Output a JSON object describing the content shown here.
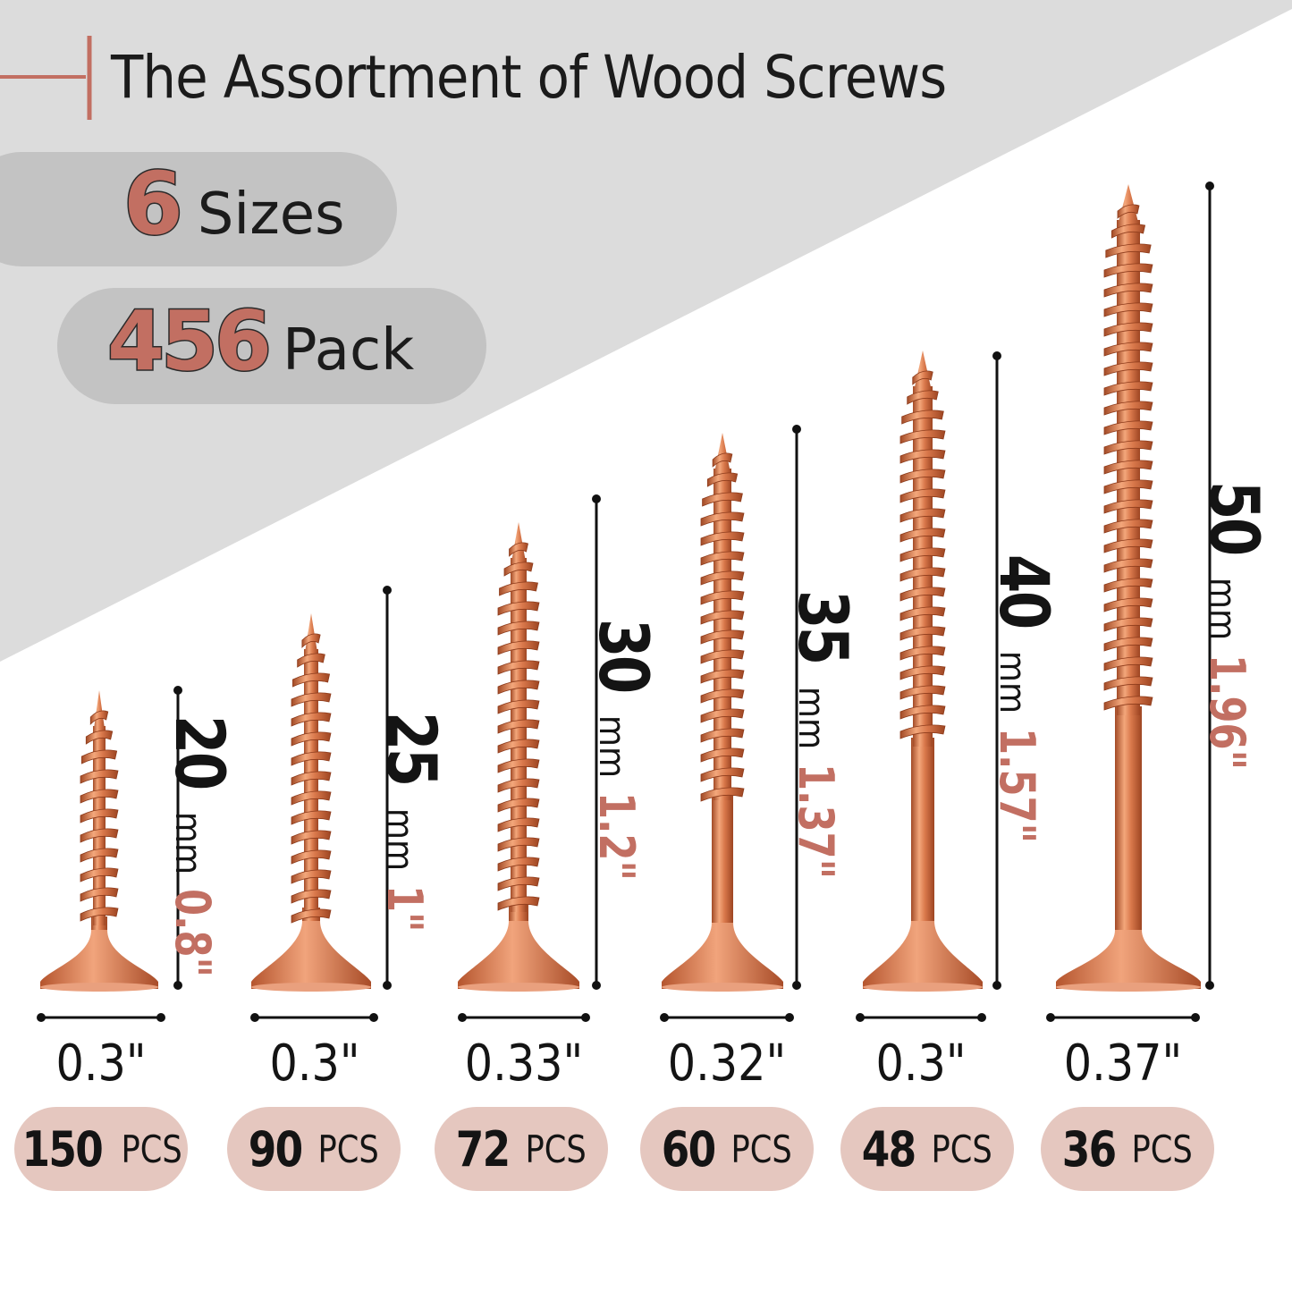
{
  "title": "The Assortment of Wood Screws",
  "sizes_count": "6",
  "sizes_label": "Sizes",
  "pack_count": "456",
  "pack_label": "Pack",
  "colors": {
    "accent": "#c26f62",
    "screw": "#d47a50",
    "pill": "#e5c7bf",
    "gray_band": "#dcdcdc"
  },
  "screws": [
    {
      "mm": "20",
      "mm_unit": "mm",
      "inch": "0.8\"",
      "width": "0.3\"",
      "count": "150",
      "unit": "PCS"
    },
    {
      "mm": "25",
      "mm_unit": "mm",
      "inch": "1\"",
      "width": "0.3\"",
      "count": "90",
      "unit": "PCS"
    },
    {
      "mm": "30",
      "mm_unit": "mm",
      "inch": "1.2\"",
      "width": "0.33\"",
      "count": "72",
      "unit": "PCS"
    },
    {
      "mm": "35",
      "mm_unit": "mm",
      "inch": "1.37\"",
      "width": "0.32\"",
      "count": "60",
      "unit": "PCS"
    },
    {
      "mm": "40",
      "mm_unit": "mm",
      "inch": "1.57\"",
      "width": "0.3\"",
      "count": "48",
      "unit": "PCS"
    },
    {
      "mm": "50",
      "mm_unit": "mm",
      "inch": "1.96\"",
      "width": "0.37\"",
      "count": "36",
      "unit": "PCS"
    }
  ]
}
